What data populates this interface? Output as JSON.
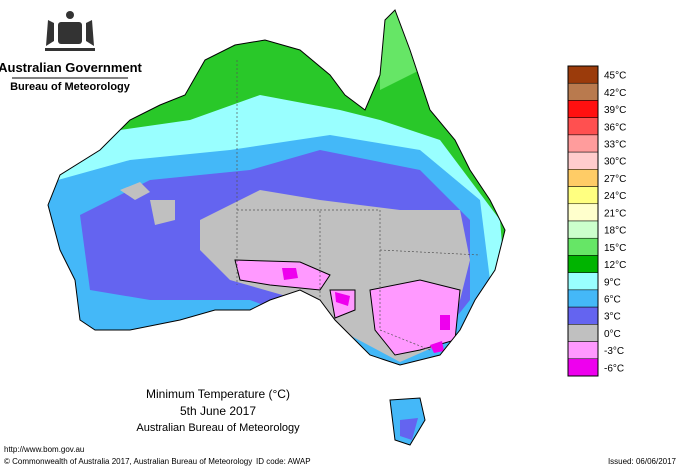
{
  "header": {
    "government": "Australian Government",
    "agency": "Bureau of Meteorology"
  },
  "map": {
    "title": "Minimum Temperature (°C)",
    "date": "5th June 2017",
    "source": "Australian Bureau of Meteorology"
  },
  "legend": [
    {
      "label": "45°C",
      "color": "#9b3b0b"
    },
    {
      "label": "42°C",
      "color": "#b97a4e"
    },
    {
      "label": "39°C",
      "color": "#ff1010"
    },
    {
      "label": "36°C",
      "color": "#ff5050"
    },
    {
      "label": "33°C",
      "color": "#ff9c9c"
    },
    {
      "label": "30°C",
      "color": "#ffcccc"
    },
    {
      "label": "27°C",
      "color": "#ffcc66"
    },
    {
      "label": "24°C",
      "color": "#ffff80"
    },
    {
      "label": "21°C",
      "color": "#ffffcc"
    },
    {
      "label": "18°C",
      "color": "#ccffcc"
    },
    {
      "label": "15°C",
      "color": "#66e666"
    },
    {
      "label": "12°C",
      "color": "#00b400"
    },
    {
      "label": "9°C",
      "color": "#99ffff"
    },
    {
      "label": "6°C",
      "color": "#44b8f8"
    },
    {
      "label": "3°C",
      "color": "#6464f0"
    },
    {
      "label": "0°C",
      "color": "#c0c0c0"
    },
    {
      "label": "-3°C",
      "color": "#ff99ff"
    },
    {
      "label": "-6°C",
      "color": "#ee00ee"
    }
  ],
  "footer": {
    "url": "http://www.bom.gov.au",
    "copyright": "© Commonwealth of Australia 2017, Australian Bureau of Meteorology",
    "id": "ID code: AWAP",
    "issued": "Issued: 06/06/2017"
  }
}
